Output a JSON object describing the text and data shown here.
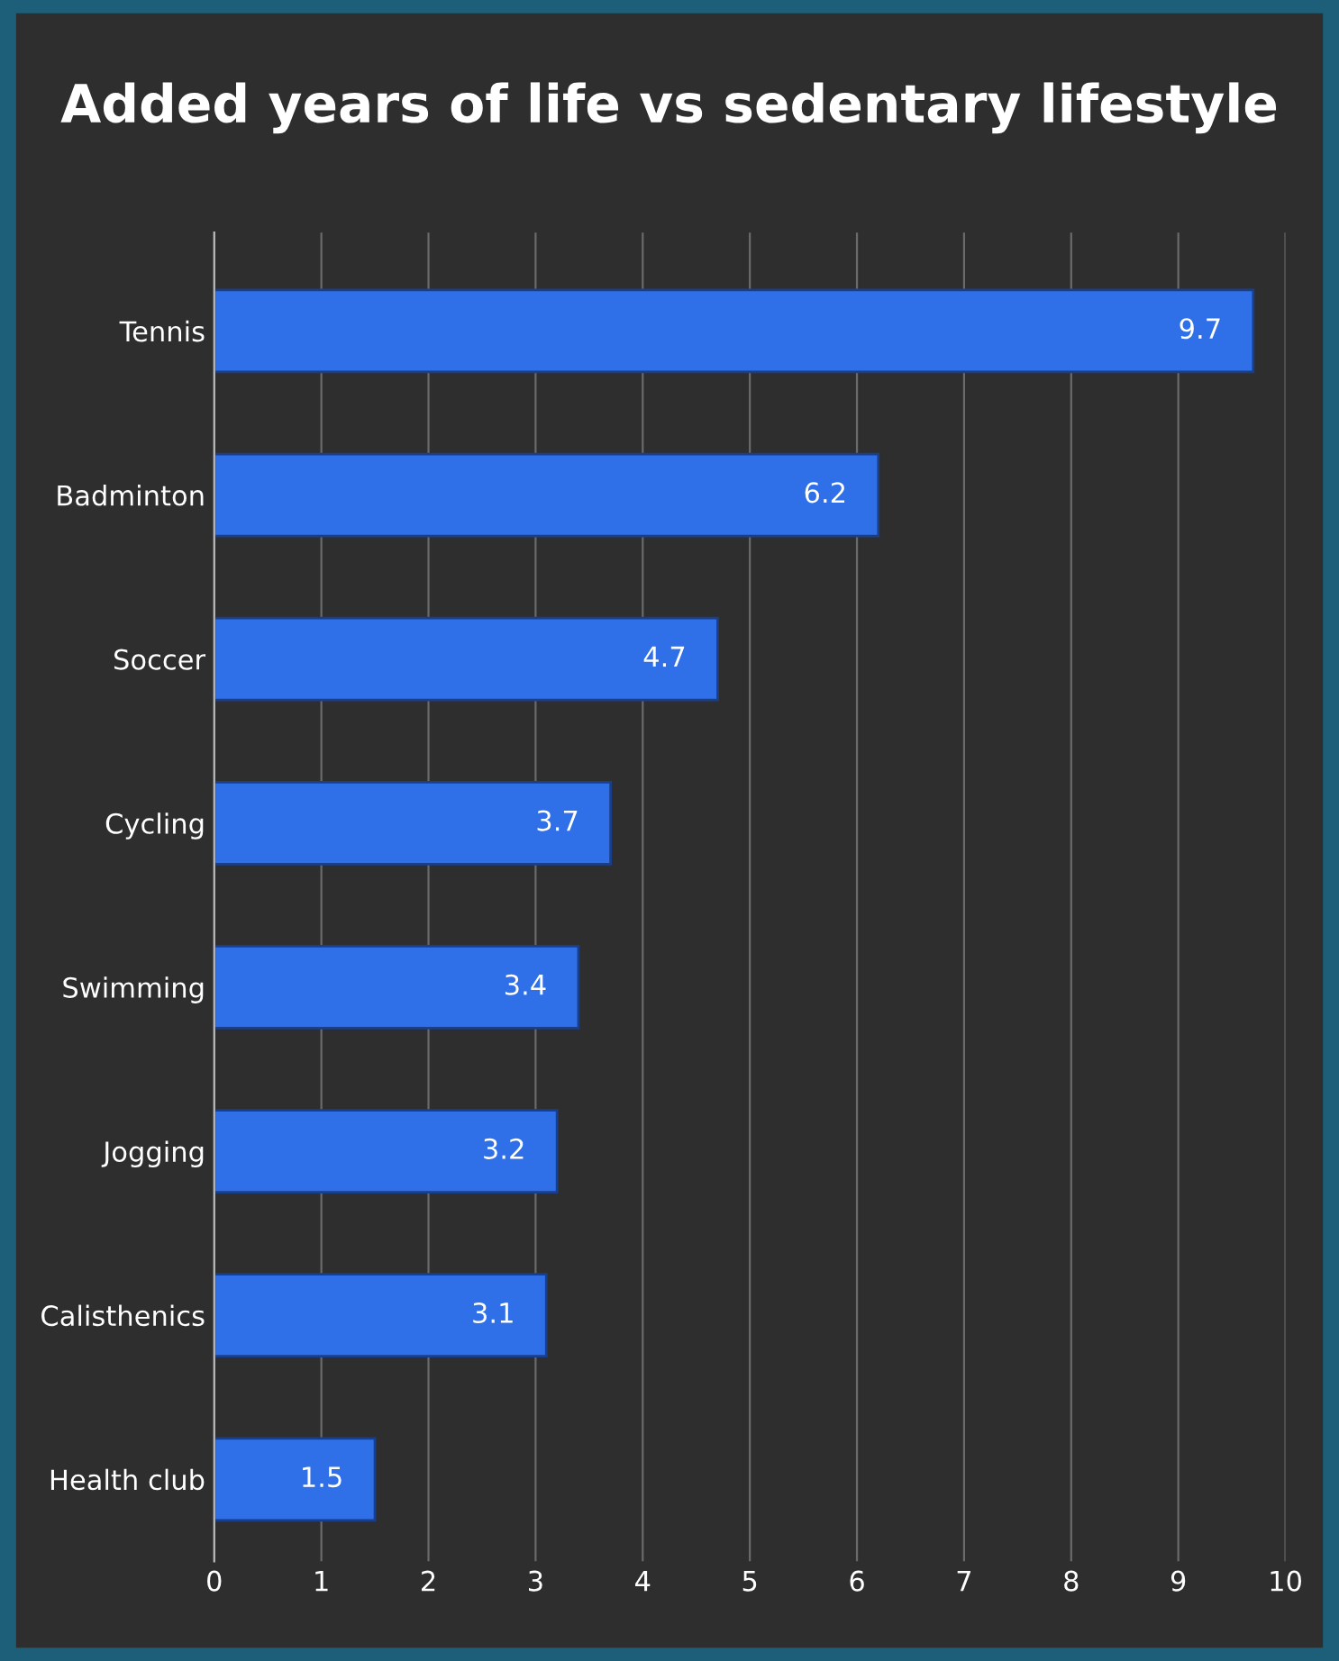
{
  "chart_data": {
    "type": "bar",
    "orientation": "horizontal",
    "title": "Added years of life vs sedentary lifestyle",
    "categories": [
      "Tennis",
      "Badminton",
      "Soccer",
      "Cycling",
      "Swimming",
      "Jogging",
      "Calisthenics",
      "Health club"
    ],
    "values": [
      9.7,
      6.2,
      4.7,
      3.7,
      3.4,
      3.2,
      3.1,
      1.5
    ],
    "color": "#2f6fe8",
    "xlim": [
      0,
      10
    ],
    "xticks": [
      0,
      1,
      2,
      3,
      4,
      5,
      6,
      7,
      8,
      9,
      10
    ],
    "grid": "x",
    "data_labels": true,
    "legend": false
  }
}
